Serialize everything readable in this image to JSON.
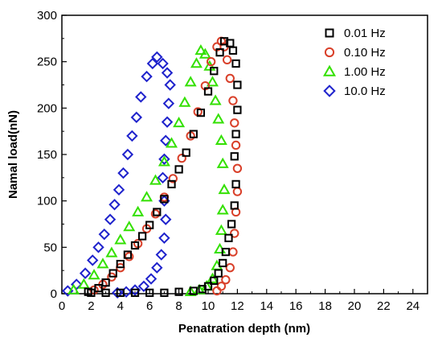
{
  "chart_data": {
    "type": "scatter",
    "title": "",
    "xlabel": "Penatration depth (nm)",
    "ylabel": "Namal load(nN)",
    "xlim": [
      0,
      25
    ],
    "ylim": [
      0,
      300
    ],
    "xticks": [
      0,
      2,
      4,
      6,
      8,
      10,
      12,
      14,
      16,
      18,
      20,
      22,
      24
    ],
    "yticks": [
      0,
      50,
      100,
      150,
      200,
      250,
      300
    ],
    "grid": false,
    "legend": "top-right",
    "series": [
      {
        "name": "0.01 Hz",
        "marker": "square",
        "color": "#000000",
        "loading": [
          [
            1.8,
            2
          ],
          [
            2.5,
            6
          ],
          [
            3.0,
            12
          ],
          [
            3.5,
            22
          ],
          [
            4.0,
            32
          ],
          [
            4.5,
            42
          ],
          [
            5.0,
            52
          ],
          [
            5.5,
            62
          ],
          [
            6.0,
            74
          ],
          [
            6.5,
            88
          ],
          [
            7.0,
            102
          ],
          [
            7.5,
            118
          ],
          [
            8.0,
            134
          ],
          [
            8.5,
            152
          ],
          [
            9.0,
            172
          ],
          [
            9.5,
            195
          ],
          [
            10.0,
            218
          ],
          [
            10.4,
            240
          ],
          [
            10.8,
            260
          ],
          [
            11.1,
            272
          ]
        ],
        "unloading": [
          [
            11.5,
            270
          ],
          [
            11.7,
            262
          ],
          [
            11.9,
            248
          ],
          [
            12.0,
            225
          ],
          [
            12.0,
            198
          ],
          [
            11.9,
            172
          ],
          [
            11.8,
            148
          ],
          [
            11.9,
            118
          ],
          [
            11.8,
            95
          ],
          [
            11.6,
            75
          ],
          [
            11.4,
            60
          ],
          [
            11.2,
            45
          ],
          [
            11.0,
            33
          ],
          [
            10.7,
            22
          ],
          [
            10.4,
            14
          ],
          [
            10.0,
            8
          ],
          [
            9.6,
            5
          ],
          [
            9.0,
            3
          ],
          [
            8.0,
            2
          ],
          [
            7.0,
            1
          ],
          [
            6.0,
            1
          ],
          [
            5.0,
            1
          ],
          [
            4.0,
            1
          ],
          [
            3.0,
            1
          ],
          [
            2.0,
            1
          ]
        ]
      },
      {
        "name": "0.10 Hz",
        "marker": "circle",
        "color": "#d9402a",
        "loading": [
          [
            2.2,
            4
          ],
          [
            2.8,
            10
          ],
          [
            3.4,
            18
          ],
          [
            4.0,
            28
          ],
          [
            4.6,
            40
          ],
          [
            5.2,
            54
          ],
          [
            5.8,
            70
          ],
          [
            6.4,
            86
          ],
          [
            7.0,
            104
          ],
          [
            7.6,
            124
          ],
          [
            8.2,
            146
          ],
          [
            8.8,
            170
          ],
          [
            9.3,
            196
          ],
          [
            9.8,
            224
          ],
          [
            10.2,
            250
          ],
          [
            10.6,
            266
          ],
          [
            10.9,
            272
          ]
        ],
        "unloading": [
          [
            11.1,
            266
          ],
          [
            11.3,
            252
          ],
          [
            11.5,
            232
          ],
          [
            11.7,
            208
          ],
          [
            11.8,
            184
          ],
          [
            11.9,
            160
          ],
          [
            12.0,
            135
          ],
          [
            12.0,
            110
          ],
          [
            11.9,
            88
          ],
          [
            11.8,
            65
          ],
          [
            11.7,
            45
          ],
          [
            11.5,
            28
          ],
          [
            11.2,
            15
          ],
          [
            10.9,
            8
          ],
          [
            10.6,
            3
          ]
        ]
      },
      {
        "name": "1.00 Hz",
        "marker": "triangle",
        "color": "#33e000",
        "loading": [
          [
            0.8,
            4
          ],
          [
            1.5,
            10
          ],
          [
            2.2,
            20
          ],
          [
            2.8,
            32
          ],
          [
            3.4,
            44
          ],
          [
            4.0,
            58
          ],
          [
            4.6,
            72
          ],
          [
            5.2,
            88
          ],
          [
            5.8,
            104
          ],
          [
            6.4,
            122
          ],
          [
            7.0,
            142
          ],
          [
            7.5,
            162
          ],
          [
            8.0,
            184
          ],
          [
            8.4,
            206
          ],
          [
            8.8,
            228
          ],
          [
            9.2,
            248
          ],
          [
            9.5,
            262
          ]
        ],
        "unloading": [
          [
            9.8,
            258
          ],
          [
            10.1,
            245
          ],
          [
            10.3,
            228
          ],
          [
            10.5,
            208
          ],
          [
            10.7,
            188
          ],
          [
            10.9,
            165
          ],
          [
            11.0,
            140
          ],
          [
            11.1,
            112
          ],
          [
            11.0,
            90
          ],
          [
            10.9,
            68
          ],
          [
            10.8,
            48
          ],
          [
            10.6,
            30
          ],
          [
            10.3,
            16
          ],
          [
            9.9,
            8
          ],
          [
            9.4,
            4
          ],
          [
            8.8,
            2
          ]
        ]
      },
      {
        "name": "10.0 Hz",
        "marker": "diamond",
        "color": "#1e22cc",
        "loading": [
          [
            0.4,
            3
          ],
          [
            1.0,
            10
          ],
          [
            1.6,
            22
          ],
          [
            2.1,
            36
          ],
          [
            2.5,
            50
          ],
          [
            2.9,
            64
          ],
          [
            3.3,
            80
          ],
          [
            3.6,
            96
          ],
          [
            3.9,
            112
          ],
          [
            4.2,
            130
          ],
          [
            4.5,
            150
          ],
          [
            4.8,
            170
          ],
          [
            5.1,
            190
          ],
          [
            5.4,
            212
          ],
          [
            5.8,
            234
          ],
          [
            6.2,
            248
          ],
          [
            6.5,
            255
          ]
        ],
        "unloading": [
          [
            6.9,
            248
          ],
          [
            7.2,
            238
          ],
          [
            7.4,
            225
          ],
          [
            7.3,
            205
          ],
          [
            7.2,
            185
          ],
          [
            7.1,
            165
          ],
          [
            7.0,
            145
          ],
          [
            6.9,
            125
          ],
          [
            7.0,
            100
          ],
          [
            7.1,
            80
          ],
          [
            7.0,
            60
          ],
          [
            6.8,
            42
          ],
          [
            6.5,
            28
          ],
          [
            6.1,
            16
          ],
          [
            5.6,
            8
          ],
          [
            5.0,
            4
          ],
          [
            4.4,
            2
          ],
          [
            3.8,
            1
          ]
        ]
      }
    ]
  }
}
